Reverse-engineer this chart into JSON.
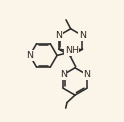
{
  "bg_color": "#faf5e8",
  "bond_color": "#2d2d2d",
  "text_color": "#2d2d2d",
  "font_size": 6.8,
  "line_width": 1.15,
  "figsize": [
    1.24,
    1.22
  ],
  "dpi": 100,
  "xlim": [
    -1.5,
    8.5
  ],
  "ylim": [
    0.5,
    9.5
  ]
}
